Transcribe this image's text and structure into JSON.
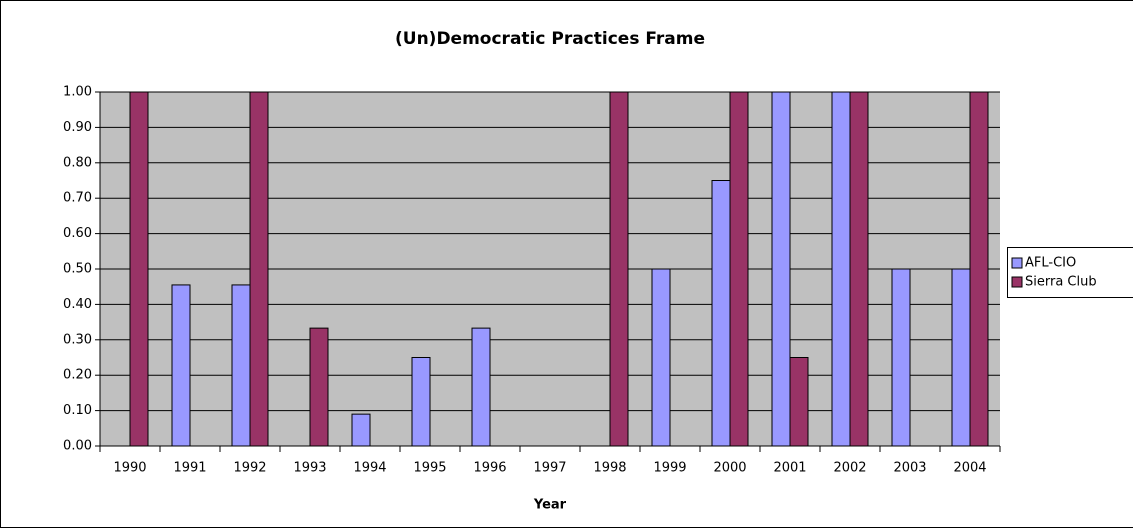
{
  "chart_data": {
    "type": "bar",
    "title": "(Un)Democratic Practices Frame",
    "x_label": "Year",
    "categories": [
      "1990",
      "1991",
      "1992",
      "1993",
      "1994",
      "1995",
      "1996",
      "1997",
      "1998",
      "1999",
      "2000",
      "2001",
      "2002",
      "2003",
      "2004"
    ],
    "series": [
      {
        "name": "AFL-CIO",
        "color": "#9999ff",
        "values": [
          0,
          0.455,
          0.455,
          0,
          0.09,
          0.25,
          0.333,
          0,
          0,
          0.5,
          0.75,
          1,
          1,
          0.5,
          0.5
        ]
      },
      {
        "name": "Sierra Club",
        "color": "#993366",
        "values": [
          1,
          0,
          1,
          0.333,
          0,
          0,
          0,
          0,
          1,
          0,
          1,
          0.25,
          1,
          0,
          1
        ]
      }
    ],
    "ylim": [
      0,
      1
    ],
    "yticks": [
      {
        "value": 0,
        "label": "0.00"
      },
      {
        "value": 0.1,
        "label": "0.10"
      },
      {
        "value": 0.2,
        "label": "0.20"
      },
      {
        "value": 0.3,
        "label": "0.30"
      },
      {
        "value": 0.4,
        "label": "0.40"
      },
      {
        "value": 0.5,
        "label": "0.50"
      },
      {
        "value": 0.6,
        "label": "0.60"
      },
      {
        "value": 0.7,
        "label": "0.70"
      },
      {
        "value": 0.8,
        "label": "0.80"
      },
      {
        "value": 0.9,
        "label": "0.90"
      },
      {
        "value": 1,
        "label": "1.00"
      }
    ],
    "grid": true,
    "legend": "right",
    "background": "#c0c0c0"
  }
}
